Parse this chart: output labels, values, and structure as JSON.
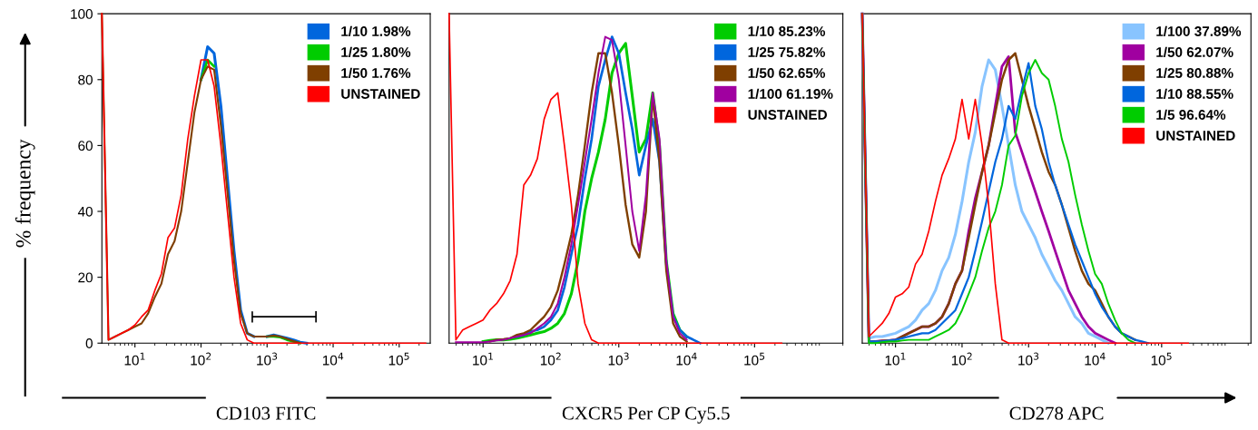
{
  "chart_data": [
    {
      "type": "line",
      "xlabel": "CD103 FITC",
      "ylabel": "% frequency",
      "log": "x",
      "legend": "top right",
      "grid": false,
      "x": [
        3.16,
        3.98,
        5.01,
        6.31,
        7.94,
        10,
        12.6,
        15.8,
        20,
        25.1,
        31.6,
        39.8,
        50.1,
        63.1,
        79.4,
        100,
        126,
        158,
        200,
        251,
        316,
        398,
        501,
        631,
        794,
        1000,
        1260,
        1580,
        2000,
        2510,
        3160,
        3980,
        5010,
        6310,
        7940,
        10000,
        12600,
        15800,
        20000,
        25100,
        31600,
        39800,
        50100,
        63100,
        79400,
        100000,
        126000,
        158000,
        200000,
        251000
      ],
      "xlim": [
        3.16,
        295000
      ],
      "ylim": [
        0,
        100
      ],
      "xticks": [
        {
          "value": 10,
          "label": "10$^{1}$"
        },
        {
          "value": 100,
          "label": "10$^{2}$"
        },
        {
          "value": 1000,
          "label": "10$^{3}$"
        },
        {
          "value": 10000,
          "label": "10$^{4}$"
        },
        {
          "value": 100000,
          "label": "10$^{5}$"
        }
      ],
      "yticks": [
        0,
        20,
        40,
        60,
        80,
        100
      ],
      "series": [
        {
          "name": "1/10 1.98%",
          "color": "#0066dd",
          "values": [
            null,
            null,
            null,
            null,
            null,
            null,
            null,
            null,
            null,
            null,
            null,
            null,
            null,
            null,
            null,
            80,
            90,
            88,
            72,
            50,
            28,
            10,
            3,
            2,
            null,
            2,
            2.5,
            2,
            1.5,
            1,
            0.3,
            0,
            null,
            null,
            null,
            null,
            null,
            null,
            null,
            null,
            null,
            null,
            null,
            null,
            null,
            null,
            null,
            null,
            null,
            null
          ]
        },
        {
          "name": "1/25 1.80%",
          "color": "#00cc00",
          "values": [
            null,
            null,
            null,
            null,
            null,
            null,
            null,
            null,
            null,
            null,
            null,
            null,
            null,
            null,
            null,
            80,
            86,
            84,
            null,
            null,
            null,
            null,
            null,
            null,
            null,
            2,
            2,
            1.8,
            1,
            0.5,
            0,
            null,
            null,
            null,
            null,
            null,
            null,
            null,
            null,
            null,
            null,
            null,
            null,
            null,
            null,
            null,
            null,
            null,
            null,
            null
          ]
        },
        {
          "name": "1/50 1.76%",
          "color": "#7f3f00",
          "values": [
            100,
            1,
            2,
            3,
            4,
            5,
            6,
            9,
            14,
            18,
            27,
            31,
            40,
            55,
            70,
            80,
            84,
            83,
            66,
            46,
            25,
            9,
            3,
            2,
            2,
            2,
            2.3,
            2,
            1.3,
            0.6,
            0,
            null,
            null,
            null,
            null,
            null,
            null,
            null,
            null,
            null,
            null,
            null,
            null,
            null,
            null,
            null,
            null,
            null,
            null,
            null
          ]
        },
        {
          "name": "UNSTAINED",
          "color": "#ff0000",
          "values": [
            100,
            1,
            2,
            3,
            4,
            5.5,
            8,
            10,
            16,
            21,
            32,
            35,
            45,
            62,
            75,
            86,
            86,
            78,
            60,
            40,
            20,
            6,
            1,
            0,
            0,
            0,
            0,
            0,
            0,
            0,
            0,
            0,
            0,
            0,
            0,
            0,
            0,
            0,
            0,
            0,
            0,
            0,
            0,
            0,
            0,
            0,
            0,
            0,
            0,
            0
          ]
        }
      ]
    },
    {
      "type": "line",
      "xlabel": "CXCR5 Per CP Cy5.5",
      "log": "x",
      "legend": "top right",
      "grid": false,
      "tick_labels": "x",
      "x": [
        3.16,
        3.98,
        5.01,
        6.31,
        7.94,
        10,
        12.6,
        15.8,
        20,
        25.1,
        31.6,
        39.8,
        50.1,
        63.1,
        79.4,
        100,
        126,
        158,
        200,
        251,
        316,
        398,
        501,
        631,
        794,
        1000,
        1260,
        1580,
        2000,
        2510,
        3160,
        3980,
        5010,
        6310,
        7940,
        10000,
        12600,
        15800,
        20000,
        25100,
        31600,
        39800,
        50100,
        63100,
        79400,
        100000,
        126000,
        158000,
        200000,
        251000
      ],
      "xlim": [
        3.16,
        2000000
      ],
      "ylim": [
        0,
        100
      ],
      "xticks": [
        {
          "value": 10,
          "label": "10$^{1}$"
        },
        {
          "value": 100,
          "label": "10$^{2}$"
        },
        {
          "value": 1000,
          "label": "10$^{3}$"
        },
        {
          "value": 10000,
          "label": "10$^{4}$"
        },
        {
          "value": 100000,
          "label": "10$^{5}$"
        }
      ],
      "series": [
        {
          "name": "1/10 85.23%",
          "color": "#00cc00",
          "values": [
            null,
            null,
            null,
            null,
            null,
            0.5,
            0.8,
            1,
            1,
            1.2,
            1.5,
            2,
            2.5,
            3,
            3.5,
            4.5,
            6,
            9,
            15,
            25,
            40,
            50,
            58,
            68,
            82,
            88,
            91,
            75,
            58,
            62,
            76,
            60,
            25,
            9,
            4,
            2,
            null,
            null,
            null,
            null,
            null,
            null,
            null,
            null,
            null,
            null,
            null,
            null,
            null,
            null
          ]
        },
        {
          "name": "1/25 75.82%",
          "color": "#0066dd",
          "values": [
            null,
            null,
            null,
            null,
            null,
            null,
            null,
            null,
            null,
            null,
            2,
            2.5,
            3.5,
            4,
            5,
            7,
            10,
            17,
            27,
            36,
            50,
            62,
            78,
            86,
            93,
            88,
            76,
            65,
            51,
            60,
            68,
            55,
            24,
            8,
            4,
            2,
            1,
            0,
            null,
            null,
            null,
            null,
            null,
            null,
            null,
            null,
            null,
            null,
            null,
            null
          ]
        },
        {
          "name": "1/50 62.65%",
          "color": "#7f3f00",
          "values": [
            null,
            null,
            null,
            null,
            null,
            null,
            0.5,
            1,
            1.2,
            1.5,
            2.5,
            3,
            4,
            6,
            8,
            11,
            16,
            24,
            33,
            45,
            60,
            76,
            88,
            88,
            76,
            60,
            42,
            30,
            26,
            40,
            75,
            55,
            22,
            6,
            2,
            0.5,
            null,
            null,
            null,
            null,
            null,
            null,
            null,
            null,
            null,
            null,
            null,
            null,
            null,
            null
          ]
        },
        {
          "name": "1/100 61.19%",
          "color": "#a000a0",
          "values": [
            null,
            0.3,
            0.3,
            0.3,
            0.3,
            0.3,
            0.5,
            0.8,
            1,
            1.5,
            2,
            2.5,
            3,
            4.5,
            6,
            8,
            12,
            20,
            30,
            42,
            55,
            68,
            82,
            93,
            92,
            80,
            60,
            40,
            28,
            45,
            76,
            62,
            25,
            8,
            3,
            1,
            null,
            null,
            null,
            null,
            null,
            null,
            null,
            null,
            null,
            null,
            null,
            null,
            null,
            null
          ]
        },
        {
          "name": "UNSTAINED",
          "color": "#ff0000",
          "values": [
            100,
            1,
            4,
            5,
            6,
            7,
            10,
            12,
            15,
            19,
            27,
            48,
            51,
            56,
            68,
            74,
            76,
            60,
            42,
            18,
            6,
            1,
            0,
            0,
            0,
            0,
            0,
            0,
            0,
            0,
            0,
            0,
            0,
            0,
            0,
            0,
            0,
            0,
            0,
            0,
            0,
            0,
            0,
            0,
            0,
            0,
            0,
            0,
            0,
            0
          ]
        }
      ]
    },
    {
      "type": "line",
      "xlabel": "CD278 APC",
      "log": "x",
      "legend": "top right",
      "grid": false,
      "tick_labels": "x",
      "x": [
        3.16,
        3.98,
        5.01,
        6.31,
        7.94,
        10,
        12.6,
        15.8,
        20,
        25.1,
        31.6,
        39.8,
        50.1,
        63.1,
        79.4,
        100,
        126,
        158,
        200,
        251,
        316,
        398,
        501,
        631,
        794,
        1000,
        1260,
        1580,
        2000,
        2510,
        3160,
        3980,
        5010,
        6310,
        7940,
        10000,
        12600,
        15800,
        20000,
        25100,
        31600,
        39800,
        50100,
        63100,
        79400,
        100000,
        126000,
        158000,
        200000,
        251000
      ],
      "xlim": [
        3.16,
        2200000
      ],
      "ylim": [
        0,
        100
      ],
      "xticks": [
        {
          "value": 10,
          "label": "10$^{1}$"
        },
        {
          "value": 100,
          "label": "10$^{2}$"
        },
        {
          "value": 1000,
          "label": "10$^{3}$"
        },
        {
          "value": 10000,
          "label": "10$^{4}$"
        },
        {
          "value": 100000,
          "label": "10$^{5}$"
        }
      ],
      "series": [
        {
          "name": "1/100 37.89%",
          "color": "#88c4ff",
          "values": [
            100,
            1.5,
            2,
            2,
            2.5,
            3,
            4,
            5,
            7,
            10,
            12,
            16,
            22,
            26,
            33,
            43,
            55,
            64,
            78,
            86,
            83,
            72,
            60,
            48,
            40,
            36,
            32,
            27,
            23,
            19,
            16,
            12,
            8,
            6,
            3,
            2,
            1,
            0,
            null,
            null,
            null,
            null,
            null,
            null,
            null,
            null,
            null,
            null,
            null,
            null
          ]
        },
        {
          "name": "1/50 62.07%",
          "color": "#a000a0",
          "values": [
            100,
            0.5,
            0.5,
            0.7,
            0.8,
            1,
            2,
            3,
            4,
            5,
            5,
            6,
            8,
            12,
            18,
            22,
            34,
            44,
            52,
            60,
            72,
            84,
            87,
            64,
            58,
            52,
            46,
            40,
            34,
            28,
            22,
            16,
            12,
            8,
            5,
            3,
            2,
            1,
            0,
            null,
            null,
            null,
            null,
            null,
            null,
            null,
            null,
            null,
            null,
            null
          ]
        },
        {
          "name": "1/25 80.88%",
          "color": "#7f3f00",
          "values": [
            100,
            0.5,
            0.5,
            0.7,
            0.8,
            1,
            2,
            3,
            4,
            5,
            5,
            6,
            8,
            12,
            18,
            22,
            32,
            42,
            52,
            60,
            70,
            80,
            86,
            88,
            80,
            72,
            65,
            58,
            52,
            48,
            42,
            35,
            28,
            22,
            18,
            16,
            12,
            8,
            5,
            3,
            2,
            1,
            null,
            null,
            null,
            null,
            null,
            null,
            null,
            null
          ]
        },
        {
          "name": "1/10 88.55%",
          "color": "#0066dd",
          "values": [
            100,
            0.5,
            0.5,
            0.5,
            0.8,
            1,
            1.5,
            2,
            2.5,
            3,
            3,
            4,
            6,
            8,
            10,
            15,
            20,
            28,
            37,
            46,
            55,
            62,
            72,
            68,
            77,
            85,
            72,
            65,
            55,
            48,
            42,
            36,
            30,
            25,
            20,
            15,
            11,
            8,
            5,
            3,
            2,
            1,
            0.5,
            0,
            null,
            null,
            null,
            null,
            null,
            null
          ]
        },
        {
          "name": "1/5 96.64%",
          "color": "#00cc00",
          "values": [
            100,
            0,
            0,
            0.3,
            0.5,
            0.5,
            0.8,
            1,
            1,
            1,
            1,
            2,
            3,
            4,
            6,
            10,
            15,
            20,
            28,
            35,
            40,
            48,
            60,
            63,
            75,
            82,
            86,
            82,
            80,
            72,
            62,
            55,
            45,
            36,
            28,
            21,
            18,
            12,
            7,
            3,
            1,
            0,
            null,
            null,
            null,
            null,
            null,
            null,
            null,
            null
          ]
        },
        {
          "name": "UNSTAINED",
          "color": "#ff0000",
          "values": [
            100,
            2,
            4,
            6,
            9,
            14,
            15,
            17,
            24,
            27,
            34,
            43,
            51,
            56,
            62,
            74,
            62,
            74,
            60,
            42,
            18,
            1,
            0,
            0,
            0,
            0,
            0,
            0,
            0,
            0,
            0,
            0,
            0,
            0,
            0,
            0,
            0,
            0,
            0,
            0,
            0,
            0,
            0,
            0,
            0,
            0,
            0,
            0,
            0,
            0
          ]
        }
      ]
    }
  ]
}
